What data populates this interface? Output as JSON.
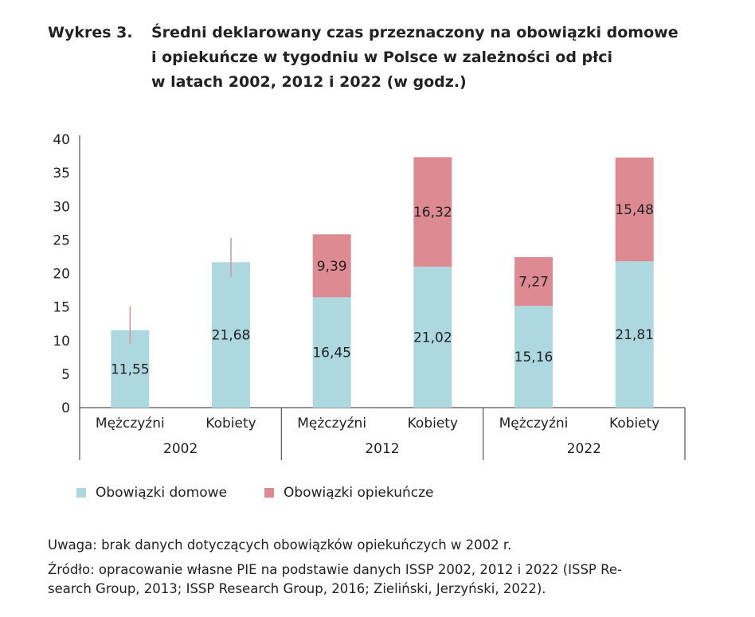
{
  "title": {
    "label": "Wykres 3.",
    "lines": [
      "Średni deklarowany czas przeznaczony na obowiązki domowe",
      "i opiekuńcze w tygodniu w Polsce w zależności od płci",
      "w latach 2002, 2012 i 2022 (w godz.)"
    ]
  },
  "chart_data": {
    "type": "bar",
    "stacked": true,
    "title": "Średni deklarowany czas przeznaczony na obowiązki domowe i opiekuńcze w tygodniu w Polsce w zależności od płci w latach 2002, 2012 i 2022 (w godz.)",
    "ylim": [
      0,
      40
    ],
    "yticks": [
      "0",
      "5",
      "10",
      "15",
      "20",
      "25",
      "30",
      "35",
      "40"
    ],
    "groups": [
      "2002",
      "2012",
      "2022"
    ],
    "categories": [
      "Mężczyźni",
      "Kobiety",
      "Mężczyźni",
      "Kobiety",
      "Mężczyźni",
      "Kobiety"
    ],
    "series": [
      {
        "name": "Obowiązki domowe",
        "color": "#aed8e0",
        "values": [
          11.55,
          21.68,
          16.45,
          21.02,
          15.16,
          21.81
        ],
        "labels": [
          "11,55",
          "21,68",
          "16,45",
          "21,02",
          "15,16",
          "21,81"
        ]
      },
      {
        "name": "Obowiązki opiekuńcze",
        "color": "#de8a93",
        "values": [
          null,
          null,
          9.39,
          16.32,
          7.27,
          15.48
        ],
        "labels": [
          "",
          "",
          "9,39",
          "16,32",
          "7,27",
          "15,48"
        ]
      }
    ],
    "error_bars": [
      [
        9.5,
        15.1
      ],
      [
        19.5,
        25.3
      ],
      null,
      null,
      null,
      null
    ],
    "legend_position": "bottom-left"
  },
  "notes": {
    "uwaga": "Uwaga: brak danych dotyczących obowiązków opiekuńczych w 2002 r.",
    "zrodlo1": "Źródło: opracowanie własne PIE na podstawie danych ISSP 2002, 2012 i 2022 (ISSP Re-",
    "zrodlo2": "search Group, 2013; ISSP Research Group, 2016; Zieliński, Jerzyński, 2022)."
  }
}
